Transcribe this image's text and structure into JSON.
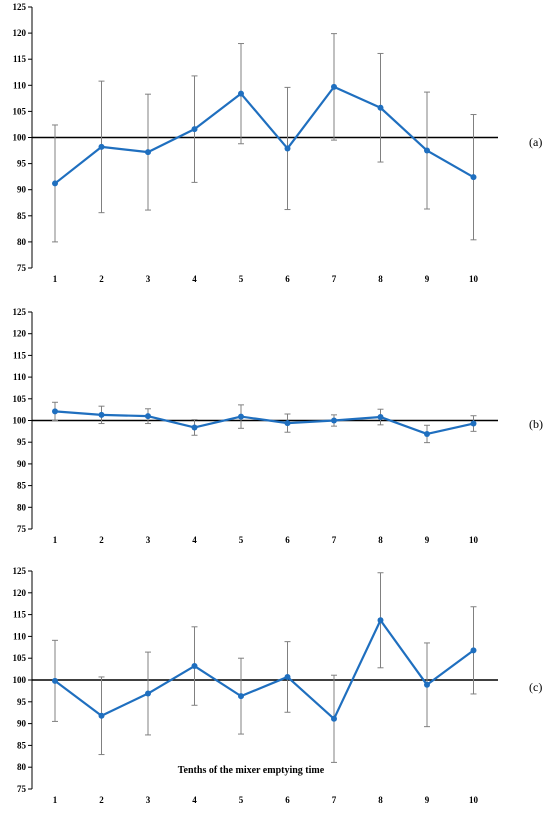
{
  "chart_data": [
    {
      "type": "line",
      "panel_label": "(a)",
      "categories": [
        "1",
        "2",
        "3",
        "4",
        "5",
        "6",
        "7",
        "8",
        "9",
        "10"
      ],
      "values": [
        91.2,
        98.2,
        97.2,
        101.6,
        108.4,
        97.9,
        109.7,
        105.7,
        97.5,
        92.4
      ],
      "error": [
        11.2,
        12.6,
        11.1,
        10.2,
        9.6,
        11.7,
        10.2,
        10.4,
        11.2,
        12.0
      ],
      "ylim": [
        75,
        125
      ],
      "yticks": [
        "75",
        "80",
        "85",
        "90",
        "95",
        "100",
        "105",
        "110",
        "115",
        "120",
        "125"
      ],
      "reference_line": 100,
      "xlabel": ""
    },
    {
      "type": "line",
      "panel_label": "(b)",
      "categories": [
        "1",
        "2",
        "3",
        "4",
        "5",
        "6",
        "7",
        "8",
        "9",
        "10"
      ],
      "values": [
        102.1,
        101.3,
        101.0,
        98.4,
        100.9,
        99.4,
        100.0,
        100.8,
        96.9,
        99.3
      ],
      "error": [
        2.1,
        2.0,
        1.7,
        1.8,
        2.7,
        2.1,
        1.3,
        1.8,
        2.0,
        1.8
      ],
      "ylim": [
        75,
        125
      ],
      "yticks": [
        "75",
        "80",
        "85",
        "90",
        "95",
        "100",
        "105",
        "110",
        "115",
        "120",
        "125"
      ],
      "reference_line": 100,
      "xlabel": ""
    },
    {
      "type": "line",
      "panel_label": "(c)",
      "categories": [
        "1",
        "2",
        "3",
        "4",
        "5",
        "6",
        "7",
        "8",
        "9",
        "10"
      ],
      "values": [
        99.8,
        91.8,
        96.9,
        103.2,
        96.3,
        100.7,
        91.1,
        113.7,
        98.9,
        106.8
      ],
      "error": [
        9.3,
        8.9,
        9.5,
        9.0,
        8.7,
        8.1,
        10.0,
        10.9,
        9.6,
        10.0
      ],
      "ylim": [
        75,
        125
      ],
      "yticks": [
        "75",
        "80",
        "85",
        "90",
        "95",
        "100",
        "105",
        "110",
        "115",
        "120",
        "125"
      ],
      "reference_line": 100,
      "xlabel": "Tenths of the mixer emptying time"
    }
  ],
  "colors": {
    "line": "#1f6fbf",
    "error_bar": "#808080",
    "axis": "#000000"
  }
}
